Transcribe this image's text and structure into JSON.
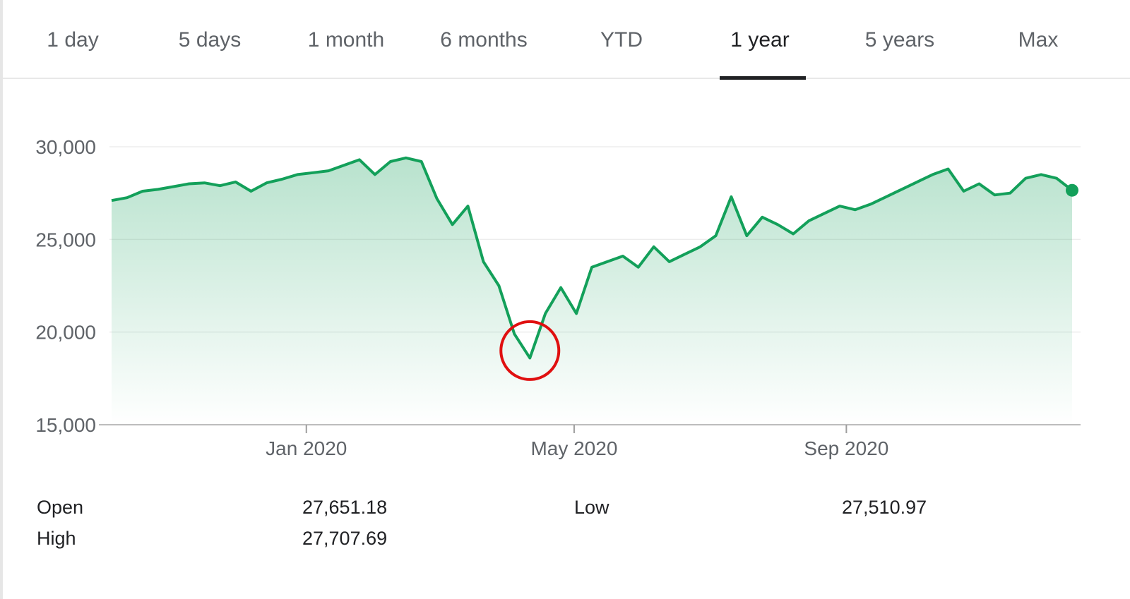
{
  "tabs": {
    "items": [
      {
        "label": "1 day"
      },
      {
        "label": "5 days"
      },
      {
        "label": "1 month"
      },
      {
        "label": "6 months"
      },
      {
        "label": "YTD"
      },
      {
        "label": "1 year"
      },
      {
        "label": "5 years"
      },
      {
        "label": "Max"
      }
    ],
    "active": "1 year"
  },
  "chart_data": {
    "type": "area",
    "title": "",
    "xlabel": "",
    "ylabel": "",
    "ylim": [
      15000,
      30000
    ],
    "yticks": [
      15000,
      20000,
      25000,
      30000
    ],
    "ytick_labels": [
      "15,000",
      "20,000",
      "25,000",
      "30,000"
    ],
    "xticks": [
      {
        "date": "2020-01-01",
        "label": "Jan 2020"
      },
      {
        "date": "2020-05-01",
        "label": "May 2020"
      },
      {
        "date": "2020-09-01",
        "label": "Sep 2020"
      }
    ],
    "grid": true,
    "colors": {
      "line": "#13a05a",
      "fill": "#13a05a",
      "annotation": "#e01010"
    },
    "series": [
      {
        "points": [
          [
            "2019-10-05",
            27100
          ],
          [
            "2019-10-12",
            27250
          ],
          [
            "2019-10-19",
            27600
          ],
          [
            "2019-10-26",
            27700
          ],
          [
            "2019-11-02",
            27850
          ],
          [
            "2019-11-09",
            28000
          ],
          [
            "2019-11-16",
            28050
          ],
          [
            "2019-11-23",
            27900
          ],
          [
            "2019-11-30",
            28100
          ],
          [
            "2019-12-07",
            27600
          ],
          [
            "2019-12-14",
            28050
          ],
          [
            "2019-12-21",
            28250
          ],
          [
            "2019-12-28",
            28500
          ],
          [
            "2020-01-04",
            28600
          ],
          [
            "2020-01-11",
            28700
          ],
          [
            "2020-01-18",
            29000
          ],
          [
            "2020-01-25",
            29300
          ],
          [
            "2020-02-01",
            28500
          ],
          [
            "2020-02-08",
            29200
          ],
          [
            "2020-02-15",
            29400
          ],
          [
            "2020-02-22",
            29200
          ],
          [
            "2020-02-29",
            27200
          ],
          [
            "2020-03-07",
            25800
          ],
          [
            "2020-03-14",
            26800
          ],
          [
            "2020-03-21",
            23800
          ],
          [
            "2020-03-28",
            22500
          ],
          [
            "2020-04-04",
            19900
          ],
          [
            "2020-04-11",
            18600
          ],
          [
            "2020-04-18",
            21000
          ],
          [
            "2020-04-25",
            22400
          ],
          [
            "2020-05-02",
            21000
          ],
          [
            "2020-05-09",
            23500
          ],
          [
            "2020-05-16",
            23800
          ],
          [
            "2020-05-23",
            24100
          ],
          [
            "2020-05-30",
            23500
          ],
          [
            "2020-06-06",
            24600
          ],
          [
            "2020-06-13",
            23800
          ],
          [
            "2020-06-20",
            24200
          ],
          [
            "2020-06-27",
            24600
          ],
          [
            "2020-07-04",
            25200
          ],
          [
            "2020-07-11",
            27300
          ],
          [
            "2020-07-18",
            25200
          ],
          [
            "2020-07-25",
            26200
          ],
          [
            "2020-08-01",
            25800
          ],
          [
            "2020-08-08",
            25300
          ],
          [
            "2020-08-15",
            26000
          ],
          [
            "2020-08-22",
            26400
          ],
          [
            "2020-08-29",
            26800
          ],
          [
            "2020-09-05",
            26600
          ],
          [
            "2020-09-12",
            26900
          ],
          [
            "2020-09-19",
            27300
          ],
          [
            "2020-09-26",
            27700
          ],
          [
            "2020-10-03",
            28100
          ],
          [
            "2020-10-10",
            28500
          ],
          [
            "2020-10-17",
            28800
          ],
          [
            "2020-10-24",
            27600
          ],
          [
            "2020-10-31",
            28000
          ],
          [
            "2020-11-07",
            27400
          ],
          [
            "2020-11-14",
            27500
          ],
          [
            "2020-11-21",
            28300
          ],
          [
            "2020-11-28",
            28500
          ],
          [
            "2020-12-05",
            28300
          ],
          [
            "2020-12-12",
            27650
          ]
        ]
      }
    ],
    "annotations": [
      {
        "shape": "circle",
        "date": "2020-04-11",
        "value": 19000
      }
    ]
  },
  "stats": {
    "open_label": "Open",
    "open_value": "27,651.18",
    "high_label": "High",
    "high_value": "27,707.69",
    "low_label": "Low",
    "low_value": "27,510.97"
  }
}
